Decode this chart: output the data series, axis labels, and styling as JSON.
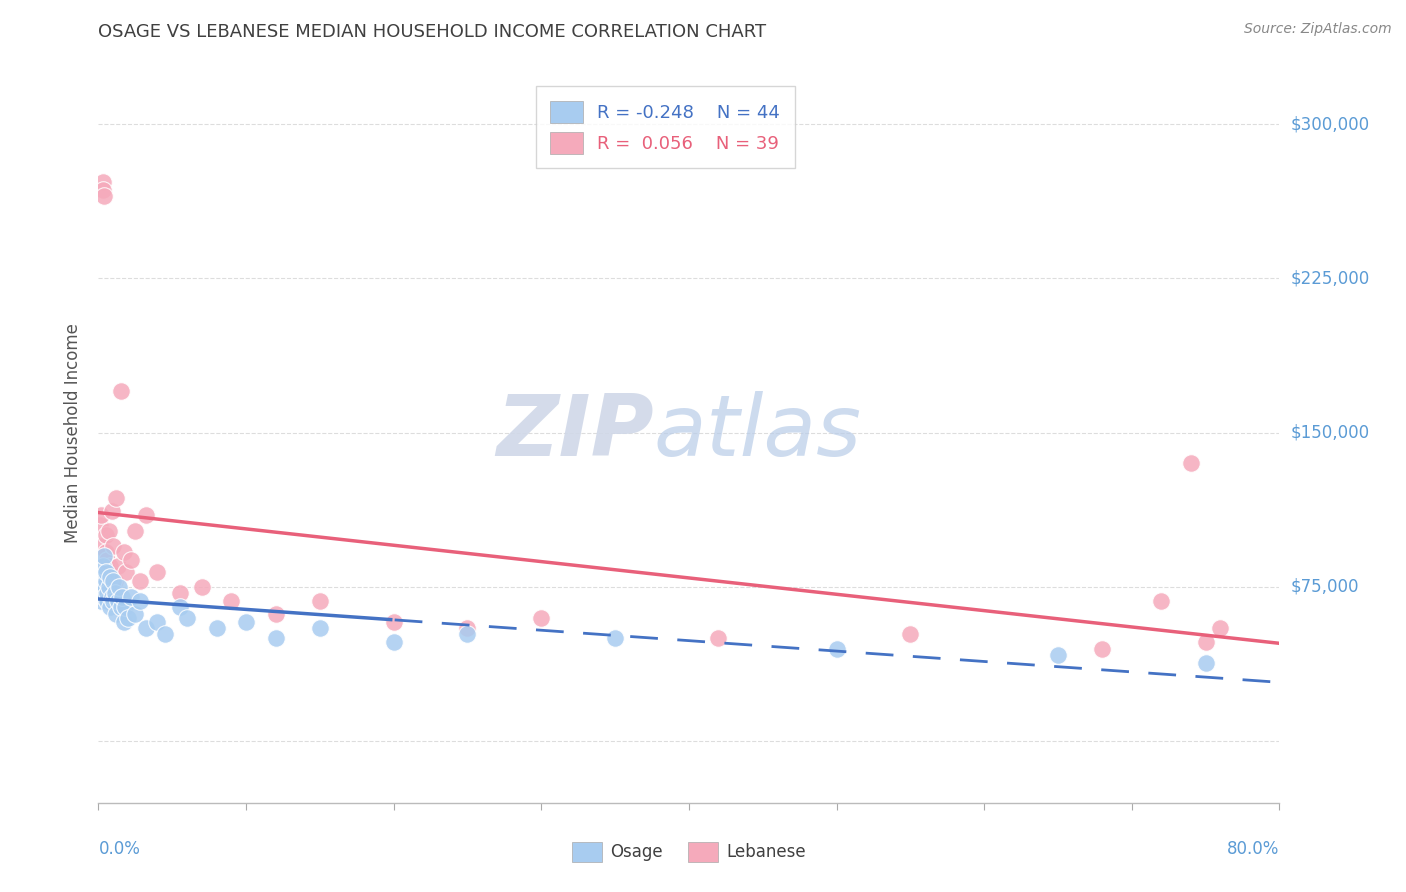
{
  "title": "OSAGE VS LEBANESE MEDIAN HOUSEHOLD INCOME CORRELATION CHART",
  "source": "Source: ZipAtlas.com",
  "ylabel": "Median Household Income",
  "yticks": [
    0,
    75000,
    150000,
    225000,
    300000
  ],
  "ytick_labels": [
    "",
    "$75,000",
    "$150,000",
    "$225,000",
    "$300,000"
  ],
  "xmin": 0.0,
  "xmax": 0.8,
  "ymin": -30000,
  "ymax": 330000,
  "watermark_zip": "ZIP",
  "watermark_atlas": "atlas",
  "legend_r_osage": "R = -0.248",
  "legend_n_osage": "N = 44",
  "legend_r_lebanese": "R =  0.056",
  "legend_n_lebanese": "N = 39",
  "osage_color": "#A8CCF0",
  "lebanese_color": "#F5AABB",
  "osage_line_color": "#4472C4",
  "lebanese_line_color": "#E8607A",
  "axis_label_color": "#5B9BD5",
  "title_color": "#404040",
  "background_color": "#FFFFFF",
  "grid_color": "#DDDDDD",
  "osage_x": [
    0.001,
    0.002,
    0.002,
    0.003,
    0.003,
    0.004,
    0.004,
    0.005,
    0.005,
    0.006,
    0.006,
    0.007,
    0.008,
    0.008,
    0.009,
    0.01,
    0.01,
    0.011,
    0.012,
    0.013,
    0.014,
    0.015,
    0.016,
    0.017,
    0.018,
    0.02,
    0.022,
    0.025,
    0.028,
    0.032,
    0.04,
    0.045,
    0.055,
    0.06,
    0.08,
    0.1,
    0.12,
    0.15,
    0.2,
    0.25,
    0.35,
    0.5,
    0.65,
    0.75
  ],
  "osage_y": [
    72000,
    68000,
    80000,
    75000,
    85000,
    70000,
    90000,
    78000,
    82000,
    68000,
    72000,
    75000,
    65000,
    80000,
    70000,
    68000,
    78000,
    72000,
    62000,
    68000,
    75000,
    65000,
    70000,
    58000,
    65000,
    60000,
    70000,
    62000,
    68000,
    55000,
    58000,
    52000,
    65000,
    60000,
    55000,
    58000,
    50000,
    55000,
    48000,
    52000,
    50000,
    45000,
    42000,
    38000
  ],
  "lebanese_x": [
    0.001,
    0.002,
    0.002,
    0.003,
    0.003,
    0.004,
    0.005,
    0.005,
    0.006,
    0.007,
    0.008,
    0.009,
    0.01,
    0.011,
    0.012,
    0.013,
    0.015,
    0.017,
    0.019,
    0.022,
    0.025,
    0.028,
    0.032,
    0.04,
    0.055,
    0.07,
    0.09,
    0.12,
    0.15,
    0.2,
    0.25,
    0.3,
    0.42,
    0.55,
    0.68,
    0.72,
    0.74,
    0.75,
    0.76
  ],
  "lebanese_y": [
    105000,
    95000,
    110000,
    272000,
    268000,
    265000,
    100000,
    92000,
    88000,
    102000,
    85000,
    112000,
    95000,
    78000,
    118000,
    85000,
    170000,
    92000,
    82000,
    88000,
    102000,
    78000,
    110000,
    82000,
    72000,
    75000,
    68000,
    62000,
    68000,
    58000,
    55000,
    60000,
    50000,
    52000,
    45000,
    68000,
    135000,
    48000,
    55000
  ]
}
